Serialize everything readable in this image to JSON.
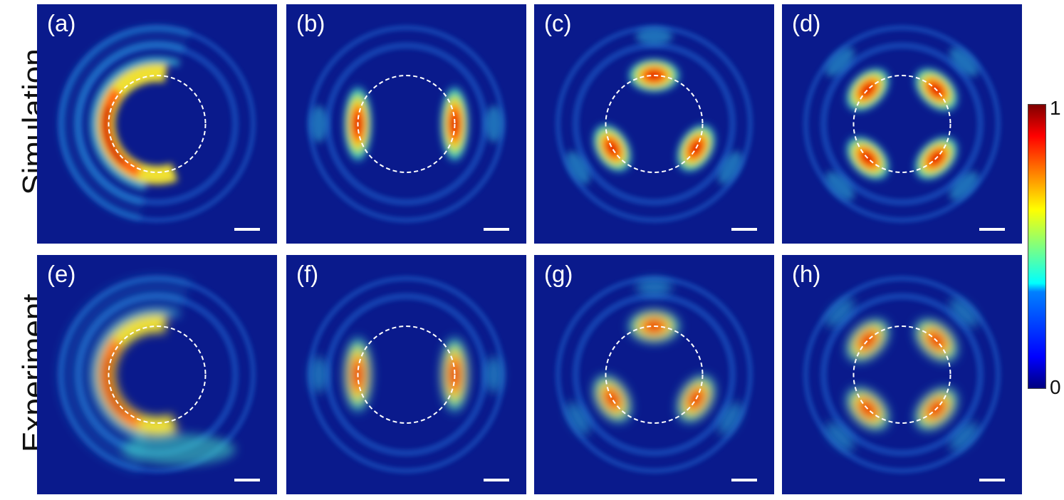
{
  "rows": [
    {
      "label": "Simulation"
    },
    {
      "label": "Experiment"
    }
  ],
  "panels": [
    {
      "label": "(a)",
      "lobes": 0,
      "shape": "crescent",
      "source": "sim"
    },
    {
      "label": "(b)",
      "lobes": 2,
      "shape": "lobes",
      "source": "sim"
    },
    {
      "label": "(c)",
      "lobes": 3,
      "shape": "lobes",
      "source": "sim"
    },
    {
      "label": "(d)",
      "lobes": 4,
      "shape": "lobes",
      "source": "sim"
    },
    {
      "label": "(e)",
      "lobes": 0,
      "shape": "crescent",
      "source": "exp"
    },
    {
      "label": "(f)",
      "lobes": 2,
      "shape": "lobes",
      "source": "exp"
    },
    {
      "label": "(g)",
      "lobes": 3,
      "shape": "lobes",
      "source": "exp"
    },
    {
      "label": "(h)",
      "lobes": 4,
      "shape": "lobes",
      "source": "exp"
    }
  ],
  "colorbar": {
    "max_label": "1",
    "min_label": "0",
    "colormap": "jet"
  },
  "colors": {
    "background": "#0a1a8c",
    "dashed_circle": "#ffffff",
    "scalebar": "#ffffff"
  }
}
